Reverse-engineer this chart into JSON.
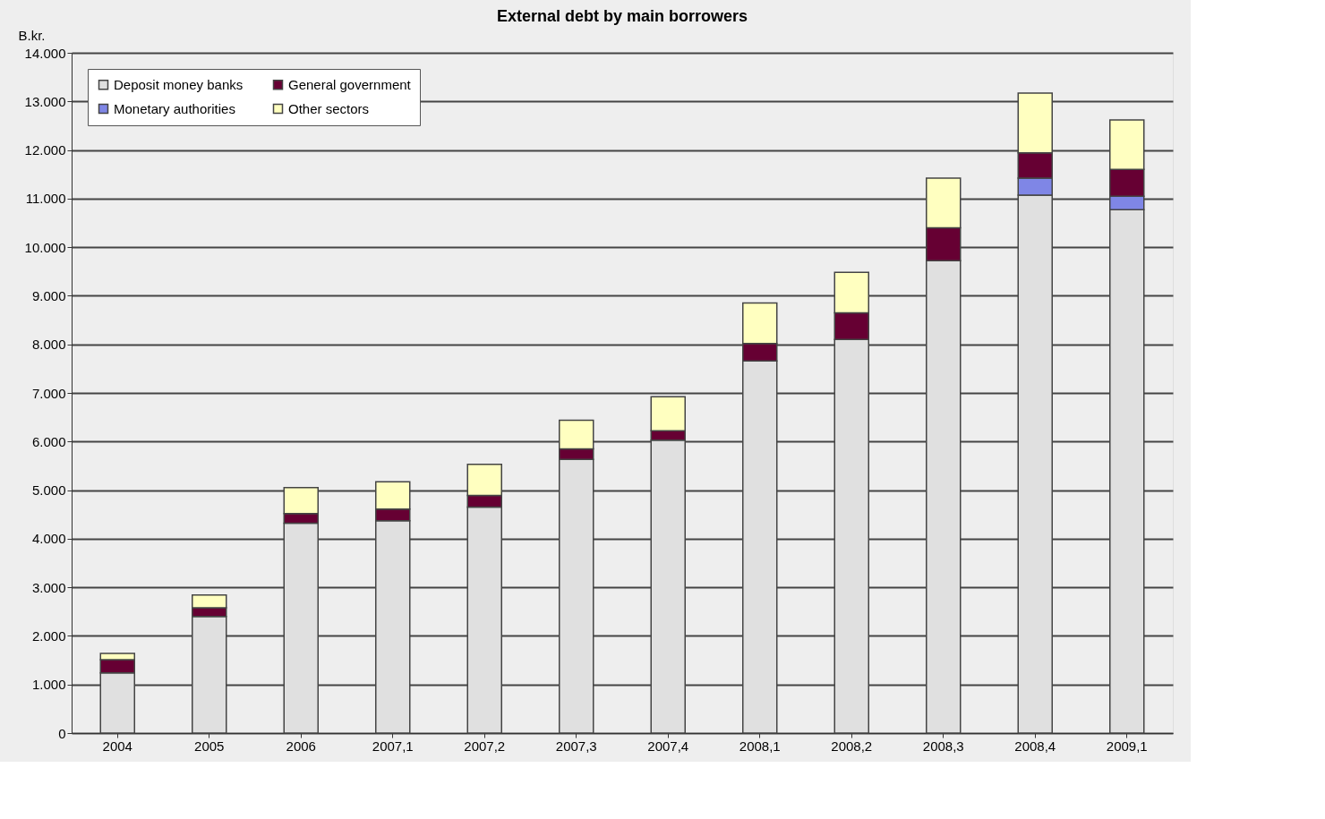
{
  "chart_data": {
    "type": "bar",
    "stacked": true,
    "title": "External debt by main borrowers",
    "ylabel": "B.kr.",
    "categories": [
      "2004",
      "2005",
      "2006",
      "2007,1",
      "2007,2",
      "2007,3",
      "2007,4",
      "2008,1",
      "2008,2",
      "2008,3",
      "2008,4",
      "2009,1"
    ],
    "series": [
      {
        "name": "Deposit money banks",
        "color": "#e0e0e0",
        "values": [
          1240,
          2400,
          4320,
          4370,
          4650,
          5630,
          6030,
          7660,
          8100,
          9720,
          11070,
          10770
        ]
      },
      {
        "name": "Monetary authorities",
        "color": "#7f86e6",
        "values": [
          null,
          null,
          null,
          null,
          null,
          null,
          null,
          null,
          null,
          null,
          350,
          280
        ]
      },
      {
        "name": "General government",
        "color": "#660033",
        "values": [
          270,
          180,
          200,
          240,
          240,
          220,
          190,
          360,
          550,
          680,
          520,
          550
        ]
      },
      {
        "name": "Other sectors",
        "color": "#ffffc0",
        "values": [
          130,
          260,
          530,
          560,
          640,
          590,
          700,
          830,
          830,
          1020,
          1230,
          1020
        ]
      }
    ],
    "ylim": [
      0,
      14000
    ],
    "yticks": [
      0,
      {
        "value": 1000,
        "label": "1.000"
      },
      {
        "value": 2000,
        "label": "2.000"
      },
      {
        "value": 3000,
        "label": "3.000"
      },
      {
        "value": 4000,
        "label": "4.000"
      },
      {
        "value": 5000,
        "label": "5.000"
      },
      {
        "value": 6000,
        "label": "6.000"
      },
      {
        "value": 7000,
        "label": "7.000"
      },
      {
        "value": 8000,
        "label": "8.000"
      },
      {
        "value": 9000,
        "label": "9.000"
      },
      {
        "value": 10000,
        "label": "10.000"
      },
      {
        "value": 11000,
        "label": "11.000"
      },
      {
        "value": 12000,
        "label": "12.000"
      },
      {
        "value": 13000,
        "label": "13.000"
      },
      {
        "value": 14000,
        "label": "14.000"
      }
    ],
    "grid": "y",
    "legend": "top left"
  }
}
